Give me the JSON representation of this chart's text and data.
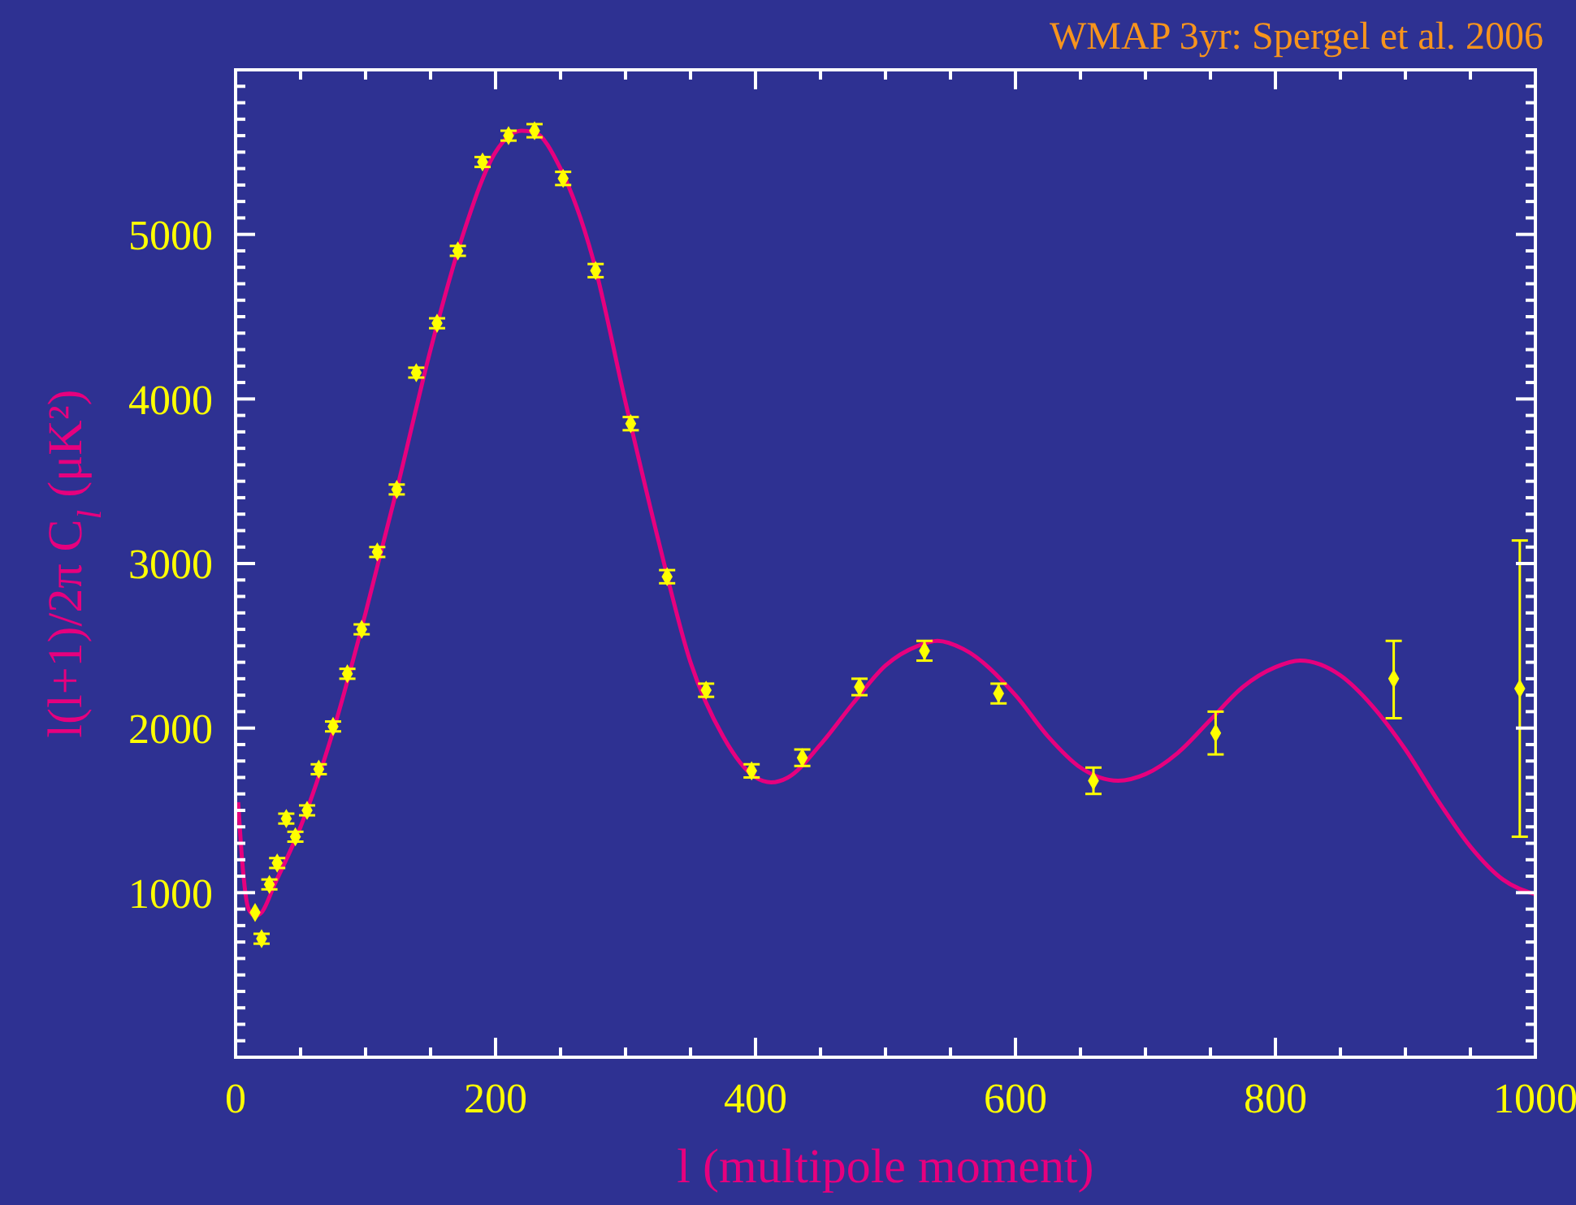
{
  "chart_data": {
    "type": "scatter",
    "ylabel": "l(l+1)/2π C$_{l}$ (μK²)",
    "xlabel": "l (multipole moment)",
    "annotations": [
      "WMAP 3yr: Spergel et al. 2006"
    ],
    "xlim": [
      0,
      1000
    ],
    "ylim": [
      0,
      6000
    ],
    "xticks": [
      0,
      {
        "value": 50,
        "label": null
      },
      {
        "value": 100,
        "label": null
      },
      {
        "value": 150,
        "label": null
      },
      200,
      {
        "value": 250,
        "label": null
      },
      {
        "value": 300,
        "label": null
      },
      {
        "value": 350,
        "label": null
      },
      400,
      {
        "value": 450,
        "label": null
      },
      {
        "value": 500,
        "label": null
      },
      {
        "value": 550,
        "label": null
      },
      600,
      {
        "value": 650,
        "label": null
      },
      {
        "value": 700,
        "label": null
      },
      {
        "value": 750,
        "label": null
      },
      800,
      {
        "value": 850,
        "label": null
      },
      {
        "value": 900,
        "label": null
      },
      {
        "value": 950,
        "label": null
      },
      1000
    ],
    "yticks": [
      {
        "value": 100,
        "label": null
      },
      {
        "value": 200,
        "label": null
      },
      {
        "value": 300,
        "label": null
      },
      {
        "value": 400,
        "label": null
      },
      {
        "value": 500,
        "label": null
      },
      {
        "value": 600,
        "label": null
      },
      {
        "value": 700,
        "label": null
      },
      {
        "value": 800,
        "label": null
      },
      {
        "value": 900,
        "label": null
      },
      1000,
      {
        "value": 1100,
        "label": null
      },
      {
        "value": 1200,
        "label": null
      },
      {
        "value": 1300,
        "label": null
      },
      {
        "value": 1400,
        "label": null
      },
      {
        "value": 1500,
        "label": null
      },
      {
        "value": 1600,
        "label": null
      },
      {
        "value": 1700,
        "label": null
      },
      {
        "value": 1800,
        "label": null
      },
      {
        "value": 1900,
        "label": null
      },
      2000,
      {
        "value": 2100,
        "label": null
      },
      {
        "value": 2200,
        "label": null
      },
      {
        "value": 2300,
        "label": null
      },
      {
        "value": 2400,
        "label": null
      },
      {
        "value": 2500,
        "label": null
      },
      {
        "value": 2600,
        "label": null
      },
      {
        "value": 2700,
        "label": null
      },
      {
        "value": 2800,
        "label": null
      },
      {
        "value": 2900,
        "label": null
      },
      3000,
      {
        "value": 3100,
        "label": null
      },
      {
        "value": 3200,
        "label": null
      },
      {
        "value": 3300,
        "label": null
      },
      {
        "value": 3400,
        "label": null
      },
      {
        "value": 3500,
        "label": null
      },
      {
        "value": 3600,
        "label": null
      },
      {
        "value": 3700,
        "label": null
      },
      {
        "value": 3800,
        "label": null
      },
      {
        "value": 3900,
        "label": null
      },
      4000,
      {
        "value": 4100,
        "label": null
      },
      {
        "value": 4200,
        "label": null
      },
      {
        "value": 4300,
        "label": null
      },
      {
        "value": 4400,
        "label": null
      },
      {
        "value": 4500,
        "label": null
      },
      {
        "value": 4600,
        "label": null
      },
      {
        "value": 4700,
        "label": null
      },
      {
        "value": 4800,
        "label": null
      },
      {
        "value": 4900,
        "label": null
      },
      5000,
      {
        "value": 5100,
        "label": null
      },
      {
        "value": 5200,
        "label": null
      },
      {
        "value": 5300,
        "label": null
      },
      {
        "value": 5400,
        "label": null
      },
      {
        "value": 5500,
        "label": null
      },
      {
        "value": 5600,
        "label": null
      },
      {
        "value": 5700,
        "label": null
      },
      {
        "value": 5800,
        "label": null
      },
      {
        "value": 5900,
        "label": null
      }
    ],
    "grid": false,
    "series": [
      {
        "type": "line",
        "color": "#e6007e",
        "line_style": "solid",
        "x": [
          2,
          5,
          10,
          15,
          20,
          30,
          50,
          75,
          100,
          125,
          150,
          175,
          200,
          220,
          230,
          250,
          275,
          300,
          325,
          350,
          375,
          400,
          412,
          425,
          450,
          475,
          500,
          525,
          540,
          560,
          600,
          625,
          650,
          679,
          700,
          725,
          750,
          775,
          800,
          819,
          850,
          875,
          900,
          925,
          950,
          975,
          1000
        ],
        "values": [
          1550,
          1200,
          900,
          860,
          880,
          1050,
          1400,
          1980,
          2700,
          3480,
          4300,
          5000,
          5500,
          5630,
          5620,
          5400,
          4850,
          3980,
          3150,
          2400,
          1950,
          1700,
          1670,
          1700,
          1900,
          2150,
          2380,
          2500,
          2530,
          2480,
          2200,
          1950,
          1760,
          1680,
          1720,
          1850,
          2050,
          2250,
          2370,
          2410,
          2320,
          2130,
          1870,
          1560,
          1280,
          1080,
          990
        ]
      },
      {
        "color": "#ffff00",
        "marker": "diamond",
        "x": [
          15,
          20,
          26,
          32,
          39,
          46,
          55,
          64,
          75,
          86,
          97,
          109,
          124,
          139,
          155,
          171,
          190,
          210,
          230,
          252,
          277,
          304,
          332,
          362,
          397,
          436,
          480,
          530,
          587,
          660,
          754,
          891,
          988
        ],
        "values": [
          880,
          720,
          1050,
          1180,
          1450,
          1340,
          1500,
          1750,
          2010,
          2330,
          2600,
          3070,
          3450,
          4160,
          4460,
          4900,
          5440,
          5600,
          5630,
          5340,
          4780,
          3850,
          2920,
          2230,
          1740,
          1820,
          2250,
          2470,
          2210,
          1680,
          1970,
          2300,
          2240
        ],
        "errors": [
          null,
          30,
          30,
          30,
          30,
          30,
          30,
          30,
          30,
          30,
          30,
          30,
          30,
          30,
          30,
          30,
          30,
          30,
          40,
          40,
          40,
          40,
          40,
          40,
          40,
          50,
          50,
          60,
          60,
          80,
          130,
          [
            2060,
            2530
          ],
          [
            1340,
            3140
          ]
        ]
      }
    ]
  }
}
